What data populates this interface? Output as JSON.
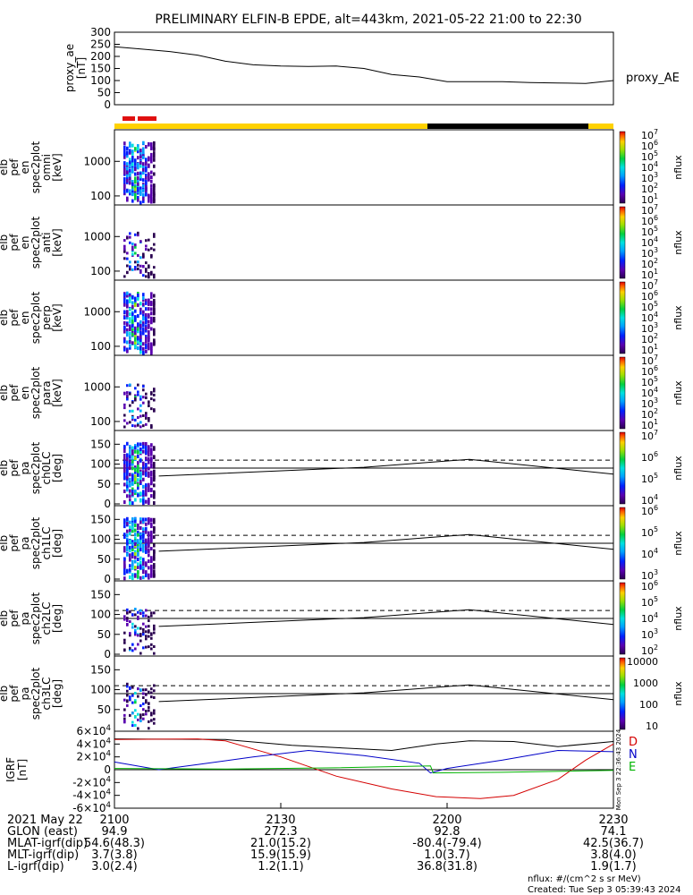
{
  "header": {
    "title": "PRELIMINARY ELFIN-B EPDE, alt=443km, 2021-05-22 21:00 to 22:30"
  },
  "chart_data": {
    "type": "line",
    "x_axis": {
      "tick_labels": [
        "2100",
        "2130",
        "2200",
        "2230"
      ],
      "range_labels": "21:00 to 22:30"
    },
    "panels": [
      {
        "id": "proxy_ae",
        "ylabel_lines": [
          "proxy_ae",
          "[nT]"
        ],
        "right_label": "proxy_AE",
        "yticks": [
          "300",
          "250",
          "200",
          "150",
          "100",
          "50",
          "0"
        ],
        "ylim": [
          0,
          300
        ],
        "series": [
          {
            "name": "proxy_AE",
            "x_min": [
              0,
              5,
              10,
              15,
              20,
              25,
              30,
              35,
              40,
              45,
              50,
              55,
              60,
              65,
              70,
              75,
              80,
              85,
              90
            ],
            "y": [
              240,
              230,
              220,
              205,
              180,
              165,
              160,
              158,
              160,
              150,
              125,
              115,
              95,
              95,
              95,
              92,
              90,
              88,
              100
            ]
          }
        ]
      },
      {
        "id": "omni",
        "ylabel_lines": [
          "elb",
          "pef",
          "en",
          "spec2plot",
          "omni",
          "[keV]"
        ],
        "yticks": [
          "1000",
          "100"
        ],
        "cbar_label": "nflux",
        "cbar_ticks": [
          "10^7",
          "10^6",
          "10^5",
          "10^4",
          "10^3",
          "10^2",
          "10^1"
        ]
      },
      {
        "id": "anti",
        "ylabel_lines": [
          "elb",
          "pef",
          "en",
          "spec2plot",
          "anti",
          "[keV]"
        ],
        "yticks": [
          "1000",
          "100"
        ],
        "cbar_label": "nflux",
        "cbar_ticks": [
          "10^7",
          "10^6",
          "10^5",
          "10^4",
          "10^3",
          "10^2",
          "10^1"
        ]
      },
      {
        "id": "perp",
        "ylabel_lines": [
          "elb",
          "pef",
          "en",
          "spec2plot",
          "perp",
          "[keV]"
        ],
        "yticks": [
          "1000",
          "100"
        ],
        "cbar_label": "nflux",
        "cbar_ticks": [
          "10^7",
          "10^6",
          "10^5",
          "10^4",
          "10^3",
          "10^2",
          "10^1"
        ]
      },
      {
        "id": "para",
        "ylabel_lines": [
          "elb",
          "pef",
          "en",
          "spec2plot",
          "para",
          "[keV]"
        ],
        "yticks": [
          "1000",
          "100"
        ],
        "cbar_label": "nflux",
        "cbar_ticks": [
          "10^7",
          "10^6",
          "10^5",
          "10^4",
          "10^3",
          "10^2",
          "10^1"
        ]
      },
      {
        "id": "ch0LC",
        "ylabel_lines": [
          "elb",
          "pef",
          "pa",
          "spec2plot",
          "ch0LC",
          "[deg]"
        ],
        "yticks": [
          "150",
          "100",
          "50",
          "0"
        ],
        "cbar_label": "nflux",
        "cbar_ticks": [
          "10^7",
          "10^6",
          "10^5",
          "10^4"
        ]
      },
      {
        "id": "ch1LC",
        "ylabel_lines": [
          "elb",
          "pef",
          "pa",
          "spec2plot",
          "ch1LC",
          "[deg]"
        ],
        "yticks": [
          "150",
          "100",
          "50",
          "0"
        ],
        "cbar_label": "nflux",
        "cbar_ticks": [
          "10^6",
          "10^5",
          "10^4",
          "10^3"
        ]
      },
      {
        "id": "ch2LC",
        "ylabel_lines": [
          "elb",
          "pef",
          "pa",
          "spec2plot",
          "ch2LC",
          "[deg]"
        ],
        "yticks": [
          "150",
          "100",
          "50",
          "0"
        ],
        "cbar_label": "nflux",
        "cbar_ticks": [
          "10^6",
          "10^5",
          "10^4",
          "10^3",
          "10^2"
        ]
      },
      {
        "id": "ch3LC",
        "ylabel_lines": [
          "elb",
          "pef",
          "pa",
          "spec2plot",
          "ch3LC",
          "[deg]"
        ],
        "yticks": [
          "150",
          "100",
          "50"
        ],
        "cbar_label": "nflux",
        "cbar_ticks": [
          "10000",
          "1000",
          "100",
          "10"
        ]
      },
      {
        "id": "igrf",
        "ylabel_lines": [
          "IGRF",
          "[nT]"
        ],
        "yticks": [
          "6×10^4",
          "4×10^4",
          "2×10^4",
          "0",
          "-2×10^4",
          "-4×10^4",
          "-6×10^4"
        ],
        "ylim": [
          -60000,
          60000
        ],
        "legend": [
          {
            "name": "D",
            "color": "#d40000"
          },
          {
            "name": "N",
            "color": "#0000c8"
          },
          {
            "name": "E",
            "color": "#00b400"
          }
        ],
        "side_label": "Mon Sep  3 22:36:43 2024"
      }
    ]
  },
  "footer": {
    "rows": [
      {
        "label": "2021 May 22",
        "v1": "2100",
        "v2": "2130",
        "v3": "2200",
        "v4": "2230"
      },
      {
        "label": "GLON (east)",
        "v1": "94.9",
        "v2": "272.3",
        "v3": "92.8",
        "v4": "74.1"
      },
      {
        "label": "MLAT-igrf(dip)",
        "v1": "54.6(48.3)",
        "v2": "21.0(15.2)",
        "v3": "-80.4(-79.4)",
        "v4": "42.5(36.7)"
      },
      {
        "label": "MLT-igrf(dip)",
        "v1": "3.7(3.8)",
        "v2": "15.9(15.9)",
        "v3": "1.0(3.7)",
        "v4": "3.8(4.0)"
      },
      {
        "label": "L-igrf(dip)",
        "v1": "3.0(2.4)",
        "v2": "1.2(1.1)",
        "v3": "36.8(31.8)",
        "v4": "1.9(1.7)"
      }
    ],
    "units_note": "nflux: #/(cm^2 s sr MeV)",
    "created": "Created: Tue Sep  3 05:39:43 2024"
  }
}
